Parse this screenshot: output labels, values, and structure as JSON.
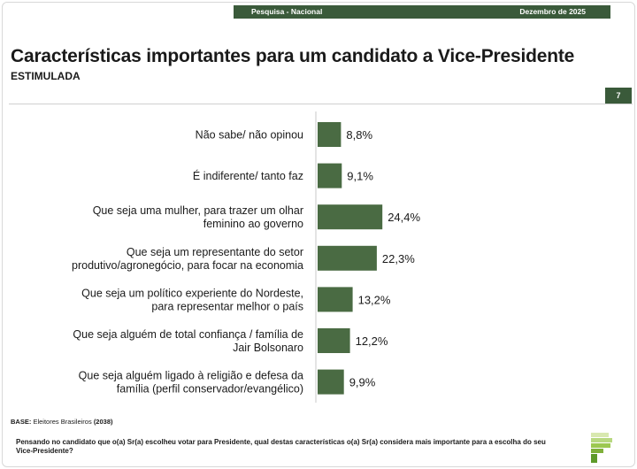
{
  "header": {
    "survey": "Pesquisa - Nacional",
    "date": "Dezembro de 2025",
    "page_number": "7"
  },
  "title": "Características importantes para um candidato a Vice-Presidente",
  "subtitle": "ESTIMULADA",
  "base": {
    "label": "BASE:",
    "text": "Eleitores Brasileiros",
    "count": "(2038)"
  },
  "question": "Pensando no candidato que o(a) Sr(a) escolheu votar para Presidente, qual destas características o(a) Sr(a) considera mais importante para a escolha do seu Vice-Presidente?",
  "colors": {
    "bar": "#4a6b43",
    "header": "#3a5a3a"
  },
  "chart_data": {
    "type": "bar",
    "orientation": "horizontal",
    "categories": [
      [
        "Não sabe/ não opinou"
      ],
      [
        "É indiferente/ tanto faz"
      ],
      [
        "Que seja uma mulher, para trazer um olhar",
        "feminino ao governo"
      ],
      [
        "Que seja um representante do setor",
        "produtivo/agronegócio, para focar na economia"
      ],
      [
        "Que seja um político experiente do Nordeste,",
        "para representar melhor o país"
      ],
      [
        "Que seja alguém de total confiança / família de",
        "Jair Bolsonaro"
      ],
      [
        "Que seja alguém ligado à religião e defesa da",
        "família (perfil conservador/evangélico)"
      ]
    ],
    "values": [
      8.8,
      9.1,
      24.4,
      22.3,
      13.2,
      12.2,
      9.9
    ],
    "data_labels": [
      "8,8%",
      "9,1%",
      "24,4%",
      "22,3%",
      "13,2%",
      "12,2%",
      "9,9%"
    ]
  }
}
